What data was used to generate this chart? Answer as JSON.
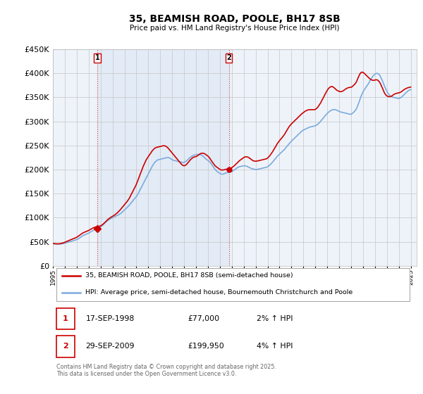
{
  "title": "35, BEAMISH ROAD, POOLE, BH17 8SB",
  "subtitle": "Price paid vs. HM Land Registry's House Price Index (HPI)",
  "ylim": [
    0,
    450000
  ],
  "yticks": [
    0,
    50000,
    100000,
    150000,
    200000,
    250000,
    300000,
    350000,
    400000,
    450000
  ],
  "ytick_labels": [
    "£0",
    "£50K",
    "£100K",
    "£150K",
    "£200K",
    "£250K",
    "£300K",
    "£350K",
    "£400K",
    "£450K"
  ],
  "xlim_start": 1995.0,
  "xlim_end": 2025.5,
  "background_color": "#ffffff",
  "chart_bg_color": "#eef3fa",
  "grid_color": "#cccccc",
  "hpi_color": "#7aabdd",
  "price_color": "#cc0000",
  "vline_color": "#dd4444",
  "marker1_x": 1998.72,
  "marker1_y": 77000,
  "marker2_x": 2009.75,
  "marker2_y": 199950,
  "legend_line1": "35, BEAMISH ROAD, POOLE, BH17 8SB (semi-detached house)",
  "legend_line2": "HPI: Average price, semi-detached house, Bournemouth Christchurch and Poole",
  "table_row1_num": "1",
  "table_row1_date": "17-SEP-1998",
  "table_row1_price": "£77,000",
  "table_row1_hpi": "2% ↑ HPI",
  "table_row2_num": "2",
  "table_row2_date": "29-SEP-2009",
  "table_row2_price": "£199,950",
  "table_row2_hpi": "4% ↑ HPI",
  "footer": "Contains HM Land Registry data © Crown copyright and database right 2025.\nThis data is licensed under the Open Government Licence v3.0.",
  "hpi_years": [
    1995.0,
    1995.08,
    1995.17,
    1995.25,
    1995.33,
    1995.42,
    1995.5,
    1995.58,
    1995.67,
    1995.75,
    1995.83,
    1995.92,
    1996.0,
    1996.08,
    1996.17,
    1996.25,
    1996.33,
    1996.42,
    1996.5,
    1996.58,
    1996.67,
    1996.75,
    1996.83,
    1996.92,
    1997.0,
    1997.08,
    1997.17,
    1997.25,
    1997.33,
    1997.42,
    1997.5,
    1997.58,
    1997.67,
    1997.75,
    1997.83,
    1997.92,
    1998.0,
    1998.08,
    1998.17,
    1998.25,
    1998.33,
    1998.42,
    1998.5,
    1998.58,
    1998.67,
    1998.75,
    1998.83,
    1998.92,
    1999.0,
    1999.08,
    1999.17,
    1999.25,
    1999.33,
    1999.42,
    1999.5,
    1999.58,
    1999.67,
    1999.75,
    1999.83,
    1999.92,
    2000.0,
    2000.08,
    2000.17,
    2000.25,
    2000.33,
    2000.42,
    2000.5,
    2000.58,
    2000.67,
    2000.75,
    2000.83,
    2000.92,
    2001.0,
    2001.08,
    2001.17,
    2001.25,
    2001.33,
    2001.42,
    2001.5,
    2001.58,
    2001.67,
    2001.75,
    2001.83,
    2001.92,
    2002.0,
    2002.08,
    2002.17,
    2002.25,
    2002.33,
    2002.42,
    2002.5,
    2002.58,
    2002.67,
    2002.75,
    2002.83,
    2002.92,
    2003.0,
    2003.08,
    2003.17,
    2003.25,
    2003.33,
    2003.42,
    2003.5,
    2003.58,
    2003.67,
    2003.75,
    2003.83,
    2003.92,
    2004.0,
    2004.08,
    2004.17,
    2004.25,
    2004.33,
    2004.42,
    2004.5,
    2004.58,
    2004.67,
    2004.75,
    2004.83,
    2004.92,
    2005.0,
    2005.08,
    2005.17,
    2005.25,
    2005.33,
    2005.42,
    2005.5,
    2005.58,
    2005.67,
    2005.75,
    2005.83,
    2005.92,
    2006.0,
    2006.08,
    2006.17,
    2006.25,
    2006.33,
    2006.42,
    2006.5,
    2006.58,
    2006.67,
    2006.75,
    2006.83,
    2006.92,
    2007.0,
    2007.08,
    2007.17,
    2007.25,
    2007.33,
    2007.42,
    2007.5,
    2007.58,
    2007.67,
    2007.75,
    2007.83,
    2007.92,
    2008.0,
    2008.08,
    2008.17,
    2008.25,
    2008.33,
    2008.42,
    2008.5,
    2008.58,
    2008.67,
    2008.75,
    2008.83,
    2008.92,
    2009.0,
    2009.08,
    2009.17,
    2009.25,
    2009.33,
    2009.42,
    2009.5,
    2009.58,
    2009.67,
    2009.75,
    2009.83,
    2009.92,
    2010.0,
    2010.08,
    2010.17,
    2010.25,
    2010.33,
    2010.42,
    2010.5,
    2010.58,
    2010.67,
    2010.75,
    2010.83,
    2010.92,
    2011.0,
    2011.08,
    2011.17,
    2011.25,
    2011.33,
    2011.42,
    2011.5,
    2011.58,
    2011.67,
    2011.75,
    2011.83,
    2011.92,
    2012.0,
    2012.08,
    2012.17,
    2012.25,
    2012.33,
    2012.42,
    2012.5,
    2012.58,
    2012.67,
    2012.75,
    2012.83,
    2012.92,
    2013.0,
    2013.08,
    2013.17,
    2013.25,
    2013.33,
    2013.42,
    2013.5,
    2013.58,
    2013.67,
    2013.75,
    2013.83,
    2013.92,
    2014.0,
    2014.08,
    2014.17,
    2014.25,
    2014.33,
    2014.42,
    2014.5,
    2014.58,
    2014.67,
    2014.75,
    2014.83,
    2014.92,
    2015.0,
    2015.08,
    2015.17,
    2015.25,
    2015.33,
    2015.42,
    2015.5,
    2015.58,
    2015.67,
    2015.75,
    2015.83,
    2015.92,
    2016.0,
    2016.08,
    2016.17,
    2016.25,
    2016.33,
    2016.42,
    2016.5,
    2016.58,
    2016.67,
    2016.75,
    2016.83,
    2016.92,
    2017.0,
    2017.08,
    2017.17,
    2017.25,
    2017.33,
    2017.42,
    2017.5,
    2017.58,
    2017.67,
    2017.75,
    2017.83,
    2017.92,
    2018.0,
    2018.08,
    2018.17,
    2018.25,
    2018.33,
    2018.42,
    2018.5,
    2018.58,
    2018.67,
    2018.75,
    2018.83,
    2018.92,
    2019.0,
    2019.08,
    2019.17,
    2019.25,
    2019.33,
    2019.42,
    2019.5,
    2019.58,
    2019.67,
    2019.75,
    2019.83,
    2019.92,
    2020.0,
    2020.08,
    2020.17,
    2020.25,
    2020.33,
    2020.42,
    2020.5,
    2020.58,
    2020.67,
    2020.75,
    2020.83,
    2020.92,
    2021.0,
    2021.08,
    2021.17,
    2021.25,
    2021.33,
    2021.42,
    2021.5,
    2021.58,
    2021.67,
    2021.75,
    2021.83,
    2021.92,
    2022.0,
    2022.08,
    2022.17,
    2022.25,
    2022.33,
    2022.42,
    2022.5,
    2022.58,
    2022.67,
    2022.75,
    2022.83,
    2022.92,
    2023.0,
    2023.08,
    2023.17,
    2023.25,
    2023.33,
    2023.42,
    2023.5,
    2023.58,
    2023.67,
    2023.75,
    2023.83,
    2023.92,
    2024.0,
    2024.08,
    2024.17,
    2024.25,
    2024.33,
    2024.42,
    2024.5,
    2024.58,
    2024.67,
    2024.75,
    2024.83,
    2024.92,
    2025.0
  ],
  "hpi_values": [
    46000,
    45800,
    45600,
    45500,
    45400,
    45300,
    45200,
    45300,
    45500,
    45800,
    46200,
    46600,
    47200,
    47800,
    48300,
    48900,
    49400,
    50000,
    50600,
    51200,
    51800,
    52400,
    53000,
    53700,
    54500,
    55500,
    56800,
    58200,
    59600,
    61000,
    62400,
    63500,
    64500,
    65400,
    66200,
    67000,
    68000,
    69200,
    70500,
    71800,
    73000,
    74200,
    75300,
    76200,
    77000,
    77800,
    78700,
    79800,
    81000,
    82500,
    84500,
    86500,
    88500,
    90500,
    92500,
    94000,
    95500,
    96800,
    98000,
    99000,
    100000,
    101000,
    102000,
    103000,
    104000,
    105000,
    106000,
    107000,
    108500,
    110000,
    112000,
    114000,
    116000,
    118000,
    120000,
    122000,
    124000,
    126500,
    129000,
    131500,
    134000,
    136500,
    139000,
    141500,
    144000,
    147000,
    151000,
    155000,
    159000,
    163000,
    167000,
    171000,
    175000,
    179000,
    183000,
    187000,
    191000,
    195000,
    199000,
    203000,
    207000,
    210500,
    213500,
    216000,
    218000,
    219500,
    220500,
    221000,
    221500,
    222000,
    222500,
    223000,
    223500,
    224000,
    224500,
    225000,
    225000,
    224500,
    223500,
    222000,
    220500,
    219500,
    219000,
    218500,
    218000,
    217500,
    217000,
    216500,
    216000,
    215500,
    215000,
    214500,
    215000,
    216000,
    217500,
    219000,
    221000,
    223000,
    225000,
    226500,
    228000,
    229000,
    230000,
    230500,
    231000,
    231500,
    231500,
    231500,
    231000,
    230500,
    229500,
    228000,
    226000,
    224000,
    222000,
    220500,
    219000,
    217500,
    215500,
    213000,
    210000,
    207000,
    204000,
    201000,
    198500,
    196500,
    195000,
    193500,
    192000,
    191000,
    190500,
    190500,
    191000,
    192000,
    193000,
    193500,
    194000,
    194500,
    195000,
    195500,
    196000,
    197000,
    198500,
    200000,
    201500,
    203000,
    204500,
    205500,
    206000,
    206500,
    207000,
    207500,
    208000,
    208000,
    207500,
    207000,
    206000,
    205000,
    204000,
    203000,
    202000,
    201500,
    201000,
    200500,
    200000,
    200000,
    200500,
    201000,
    201500,
    202000,
    202500,
    203000,
    203500,
    204000,
    204500,
    205000,
    206000,
    207500,
    209000,
    211000,
    213000,
    215500,
    218000,
    220500,
    223000,
    225500,
    228000,
    230000,
    232000,
    234000,
    236000,
    238000,
    240000,
    242000,
    244500,
    247000,
    249500,
    252000,
    254500,
    257000,
    259000,
    261000,
    263000,
    265000,
    267000,
    269000,
    271000,
    273000,
    275000,
    277000,
    279000,
    281000,
    282000,
    283000,
    284000,
    285000,
    286000,
    287000,
    288000,
    288500,
    289000,
    289500,
    290000,
    290500,
    291000,
    292000,
    293500,
    295000,
    297000,
    299500,
    302000,
    304500,
    307000,
    309500,
    312000,
    314500,
    316500,
    318500,
    320500,
    322000,
    323000,
    324000,
    324500,
    324500,
    324500,
    324000,
    323000,
    322000,
    321000,
    320000,
    319500,
    319000,
    318500,
    318000,
    317500,
    317000,
    316500,
    316000,
    315500,
    315000,
    315000,
    316000,
    318000,
    320000,
    322000,
    325000,
    329000,
    334000,
    340000,
    346000,
    352000,
    357000,
    361000,
    365000,
    368000,
    371000,
    374000,
    377000,
    380500,
    384000,
    387500,
    391000,
    394000,
    396500,
    398000,
    399500,
    400000,
    399500,
    398000,
    395500,
    391500,
    387000,
    382000,
    377000,
    372000,
    367000,
    363000,
    359000,
    356000,
    354000,
    352500,
    351500,
    350500,
    350000,
    349500,
    349000,
    348500,
    348000,
    348000,
    348500,
    349500,
    351000,
    353000,
    355000,
    357000,
    359000,
    361000,
    363000,
    364500,
    365500,
    366000
  ],
  "price_years": [
    1995.0,
    1995.08,
    1995.17,
    1995.25,
    1995.33,
    1995.42,
    1995.5,
    1995.58,
    1995.67,
    1995.75,
    1995.83,
    1995.92,
    1996.0,
    1996.08,
    1996.17,
    1996.25,
    1996.33,
    1996.42,
    1996.5,
    1996.58,
    1996.67,
    1996.75,
    1996.83,
    1996.92,
    1997.0,
    1997.08,
    1997.17,
    1997.25,
    1997.33,
    1997.42,
    1997.5,
    1997.58,
    1997.67,
    1997.75,
    1997.83,
    1997.92,
    1998.0,
    1998.08,
    1998.17,
    1998.25,
    1998.33,
    1998.42,
    1998.5,
    1998.58,
    1998.67,
    1998.75,
    1998.83,
    1998.92,
    1999.0,
    1999.08,
    1999.17,
    1999.25,
    1999.33,
    1999.42,
    1999.5,
    1999.58,
    1999.67,
    1999.75,
    1999.83,
    1999.92,
    2000.0,
    2000.08,
    2000.17,
    2000.25,
    2000.33,
    2000.42,
    2000.5,
    2000.58,
    2000.67,
    2000.75,
    2000.83,
    2000.92,
    2001.0,
    2001.08,
    2001.17,
    2001.25,
    2001.33,
    2001.42,
    2001.5,
    2001.58,
    2001.67,
    2001.75,
    2001.83,
    2001.92,
    2002.0,
    2002.08,
    2002.17,
    2002.25,
    2002.33,
    2002.42,
    2002.5,
    2002.58,
    2002.67,
    2002.75,
    2002.83,
    2002.92,
    2003.0,
    2003.08,
    2003.17,
    2003.25,
    2003.33,
    2003.42,
    2003.5,
    2003.58,
    2003.67,
    2003.75,
    2003.83,
    2003.92,
    2004.0,
    2004.08,
    2004.17,
    2004.25,
    2004.33,
    2004.42,
    2004.5,
    2004.58,
    2004.67,
    2004.75,
    2004.83,
    2004.92,
    2005.0,
    2005.08,
    2005.17,
    2005.25,
    2005.33,
    2005.42,
    2005.5,
    2005.58,
    2005.67,
    2005.75,
    2005.83,
    2005.92,
    2006.0,
    2006.08,
    2006.17,
    2006.25,
    2006.33,
    2006.42,
    2006.5,
    2006.58,
    2006.67,
    2006.75,
    2006.83,
    2006.92,
    2007.0,
    2007.08,
    2007.17,
    2007.25,
    2007.33,
    2007.42,
    2007.5,
    2007.58,
    2007.67,
    2007.75,
    2007.83,
    2007.92,
    2008.0,
    2008.08,
    2008.17,
    2008.25,
    2008.33,
    2008.42,
    2008.5,
    2008.58,
    2008.67,
    2008.75,
    2008.83,
    2008.92,
    2009.0,
    2009.08,
    2009.17,
    2009.25,
    2009.33,
    2009.42,
    2009.5,
    2009.58,
    2009.67,
    2009.75,
    2009.83,
    2009.92,
    2010.0,
    2010.08,
    2010.17,
    2010.25,
    2010.33,
    2010.42,
    2010.5,
    2010.58,
    2010.67,
    2010.75,
    2010.83,
    2010.92,
    2011.0,
    2011.08,
    2011.17,
    2011.25,
    2011.33,
    2011.42,
    2011.5,
    2011.58,
    2011.67,
    2011.75,
    2011.83,
    2011.92,
    2012.0,
    2012.08,
    2012.17,
    2012.25,
    2012.33,
    2012.42,
    2012.5,
    2012.58,
    2012.67,
    2012.75,
    2012.83,
    2012.92,
    2013.0,
    2013.08,
    2013.17,
    2013.25,
    2013.33,
    2013.42,
    2013.5,
    2013.58,
    2013.67,
    2013.75,
    2013.83,
    2013.92,
    2014.0,
    2014.08,
    2014.17,
    2014.25,
    2014.33,
    2014.42,
    2014.5,
    2014.58,
    2014.67,
    2014.75,
    2014.83,
    2014.92,
    2015.0,
    2015.08,
    2015.17,
    2015.25,
    2015.33,
    2015.42,
    2015.5,
    2015.58,
    2015.67,
    2015.75,
    2015.83,
    2015.92,
    2016.0,
    2016.08,
    2016.17,
    2016.25,
    2016.33,
    2016.42,
    2016.5,
    2016.58,
    2016.67,
    2016.75,
    2016.83,
    2016.92,
    2017.0,
    2017.08,
    2017.17,
    2017.25,
    2017.33,
    2017.42,
    2017.5,
    2017.58,
    2017.67,
    2017.75,
    2017.83,
    2017.92,
    2018.0,
    2018.08,
    2018.17,
    2018.25,
    2018.33,
    2018.42,
    2018.5,
    2018.58,
    2018.67,
    2018.75,
    2018.83,
    2018.92,
    2019.0,
    2019.08,
    2019.17,
    2019.25,
    2019.33,
    2019.42,
    2019.5,
    2019.58,
    2019.67,
    2019.75,
    2019.83,
    2019.92,
    2020.0,
    2020.08,
    2020.17,
    2020.25,
    2020.33,
    2020.42,
    2020.5,
    2020.58,
    2020.67,
    2020.75,
    2020.83,
    2020.92,
    2021.0,
    2021.08,
    2021.17,
    2021.25,
    2021.33,
    2021.42,
    2021.5,
    2021.58,
    2021.67,
    2021.75,
    2021.83,
    2021.92,
    2022.0,
    2022.08,
    2022.17,
    2022.25,
    2022.33,
    2022.42,
    2022.5,
    2022.58,
    2022.67,
    2022.75,
    2022.83,
    2022.92,
    2023.0,
    2023.08,
    2023.17,
    2023.25,
    2023.33,
    2023.42,
    2023.5,
    2023.58,
    2023.67,
    2023.75,
    2023.83,
    2023.92,
    2024.0,
    2024.08,
    2024.17,
    2024.25,
    2024.33,
    2024.42,
    2024.5,
    2024.58,
    2024.67,
    2024.75,
    2024.83,
    2024.92,
    2025.0
  ],
  "price_values": [
    46500,
    46200,
    46000,
    45800,
    45700,
    45700,
    45800,
    46000,
    46400,
    46900,
    47500,
    48200,
    49000,
    49800,
    50700,
    51600,
    52500,
    53400,
    54300,
    55100,
    55900,
    56700,
    57500,
    58400,
    59500,
    60800,
    62300,
    63800,
    65300,
    66800,
    68100,
    69200,
    70100,
    70900,
    71700,
    72500,
    73500,
    74700,
    76000,
    77200,
    78300,
    79300,
    80100,
    80700,
    81100,
    81400,
    81800,
    82400,
    83200,
    84300,
    85700,
    87500,
    89400,
    91500,
    93600,
    95600,
    97400,
    99000,
    100500,
    101800,
    103000,
    104200,
    105500,
    107000,
    108700,
    110500,
    112500,
    114700,
    117000,
    119500,
    122000,
    124500,
    127000,
    129500,
    132000,
    134500,
    137500,
    141000,
    145000,
    149000,
    153000,
    157000,
    161000,
    165000,
    169500,
    174500,
    180000,
    185500,
    191000,
    196500,
    202000,
    207000,
    212000,
    216500,
    220500,
    224000,
    227000,
    230000,
    233000,
    236000,
    239000,
    241500,
    243500,
    245000,
    246000,
    246500,
    247000,
    247500,
    248000,
    248500,
    249000,
    249500,
    249500,
    249000,
    248000,
    246500,
    244500,
    242000,
    239500,
    237000,
    234500,
    232000,
    229500,
    227000,
    224500,
    222000,
    219500,
    217000,
    214500,
    212000,
    210000,
    208500,
    208000,
    208500,
    210000,
    212000,
    214500,
    217000,
    219500,
    221500,
    223500,
    225000,
    226000,
    226500,
    227000,
    228000,
    229500,
    231000,
    232500,
    233500,
    234000,
    234000,
    233500,
    232500,
    231000,
    229500,
    228000,
    226000,
    223000,
    220000,
    217000,
    214000,
    211000,
    208500,
    206500,
    205000,
    203500,
    202000,
    200500,
    199500,
    199000,
    199200,
    199500,
    200000,
    200500,
    201000,
    201500,
    202000,
    202500,
    203000,
    204000,
    205500,
    207000,
    209000,
    211000,
    213000,
    215000,
    217000,
    219000,
    220500,
    222000,
    223500,
    225000,
    226000,
    226500,
    226500,
    226000,
    225000,
    223500,
    222000,
    220500,
    219000,
    218000,
    217500,
    217500,
    217500,
    218000,
    218500,
    219000,
    219500,
    220000,
    220500,
    221000,
    221500,
    222000,
    222500,
    224000,
    226000,
    228500,
    231000,
    234000,
    237000,
    240500,
    244000,
    247500,
    251000,
    254500,
    257500,
    260000,
    262500,
    265000,
    267500,
    270000,
    273000,
    276500,
    280000,
    283500,
    287000,
    290000,
    292500,
    295000,
    297000,
    299000,
    301000,
    303000,
    305000,
    307000,
    309000,
    311000,
    313000,
    315000,
    317000,
    318500,
    320000,
    321500,
    322500,
    323500,
    324000,
    324500,
    324500,
    324500,
    324500,
    324500,
    324500,
    325000,
    326500,
    328500,
    331000,
    334000,
    337500,
    341000,
    345000,
    349000,
    353000,
    357000,
    361000,
    364500,
    367500,
    370000,
    371500,
    372500,
    372500,
    371500,
    370000,
    368000,
    366000,
    364500,
    363500,
    362500,
    362000,
    362000,
    362500,
    363500,
    365000,
    366500,
    368000,
    369000,
    370000,
    370500,
    371000,
    371000,
    372000,
    374000,
    376000,
    378000,
    381000,
    385000,
    390000,
    395000,
    399000,
    401500,
    402500,
    402000,
    400500,
    398500,
    396500,
    394500,
    392500,
    390500,
    388500,
    387000,
    386000,
    385500,
    385500,
    386000,
    386500,
    386500,
    385500,
    383500,
    380500,
    376500,
    372000,
    367000,
    362000,
    358000,
    355000,
    353000,
    352000,
    351500,
    351500,
    352000,
    353000,
    354500,
    356000,
    357000,
    358000,
    358500,
    359000,
    359500,
    360000,
    361000,
    362500,
    364000,
    365500,
    367000,
    368000,
    369000,
    370000,
    370500,
    371000,
    371500
  ]
}
